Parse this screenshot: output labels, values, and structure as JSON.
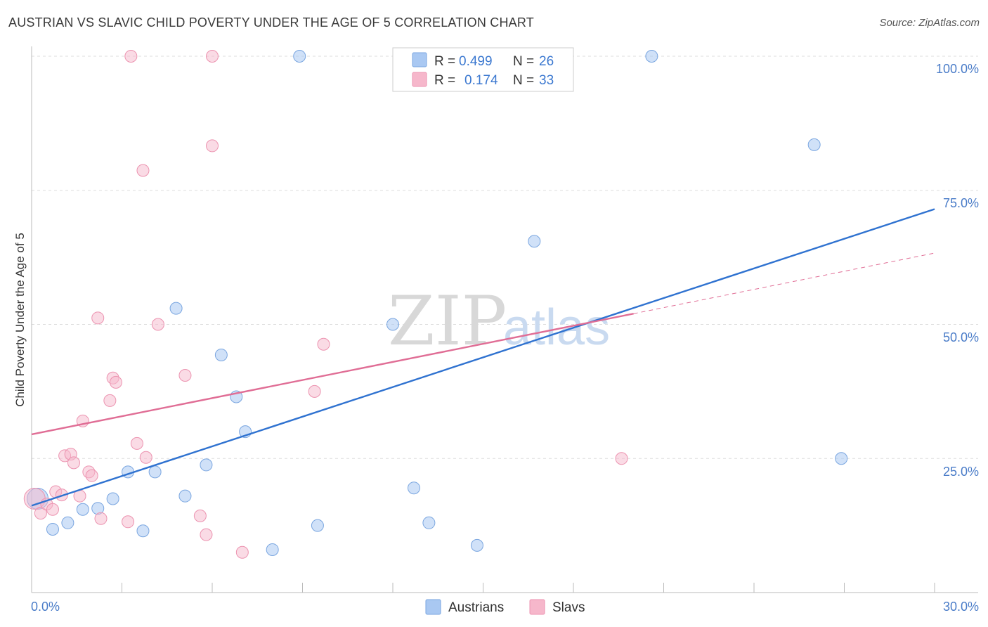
{
  "header": {
    "title": "AUSTRIAN VS SLAVIC CHILD POVERTY UNDER THE AGE OF 5 CORRELATION CHART",
    "source": "Source: ZipAtlas.com"
  },
  "watermark": {
    "zip": "ZIP",
    "atlas": "atlas"
  },
  "legend": {
    "rows": [
      {
        "r_label": "R =",
        "r_value": "0.499",
        "n_label": "N =",
        "n_value": "26",
        "color": "#a9c8f2"
      },
      {
        "r_label": "R =",
        "r_value": "0.174",
        "n_label": "N =",
        "n_value": "33",
        "color": "#f6b7cb"
      }
    ]
  },
  "chart_data": {
    "type": "scatter",
    "title": "AUSTRIAN VS SLAVIC CHILD POVERTY UNDER THE AGE OF 5 CORRELATION CHART",
    "xlabel": "",
    "ylabel": "Child Poverty Under the Age of 5",
    "xlim": [
      0,
      30
    ],
    "ylim": [
      0,
      100
    ],
    "x_tick_labels": [
      "0.0%",
      "30.0%"
    ],
    "y_tick_labels": [
      {
        "value": 100,
        "label": "100.0%"
      },
      {
        "value": 75,
        "label": "75.0%"
      },
      {
        "value": 50,
        "label": "50.0%"
      },
      {
        "value": 25,
        "label": "25.0%"
      }
    ],
    "series": [
      {
        "name": "Austrians",
        "color": "#a9c8f2",
        "stroke": "#7aa6e0",
        "line_color": "#2f72d0",
        "R": 0.499,
        "N": 26,
        "trend": {
          "x0": 0,
          "y0": 16.2,
          "x1": 30,
          "y1": 71.5
        },
        "points": [
          {
            "x": 0.2,
            "y": 17.5,
            "big": true
          },
          {
            "x": 0.7,
            "y": 11.8
          },
          {
            "x": 1.2,
            "y": 13.0
          },
          {
            "x": 1.7,
            "y": 15.5
          },
          {
            "x": 2.2,
            "y": 15.7
          },
          {
            "x": 2.7,
            "y": 17.5
          },
          {
            "x": 3.2,
            "y": 22.5
          },
          {
            "x": 3.7,
            "y": 11.5
          },
          {
            "x": 4.1,
            "y": 22.5
          },
          {
            "x": 4.8,
            "y": 53.0
          },
          {
            "x": 5.1,
            "y": 18.0
          },
          {
            "x": 5.8,
            "y": 23.8
          },
          {
            "x": 6.3,
            "y": 44.3
          },
          {
            "x": 6.8,
            "y": 36.5
          },
          {
            "x": 7.1,
            "y": 30.0
          },
          {
            "x": 8.0,
            "y": 8.0
          },
          {
            "x": 8.9,
            "y": 100.0
          },
          {
            "x": 9.5,
            "y": 12.5
          },
          {
            "x": 12.0,
            "y": 50.0
          },
          {
            "x": 12.7,
            "y": 19.5
          },
          {
            "x": 13.2,
            "y": 13.0
          },
          {
            "x": 14.8,
            "y": 8.8
          },
          {
            "x": 16.7,
            "y": 65.5
          },
          {
            "x": 20.6,
            "y": 100.0
          },
          {
            "x": 26.0,
            "y": 83.5
          },
          {
            "x": 26.9,
            "y": 25.0
          }
        ]
      },
      {
        "name": "Slavs",
        "color": "#f6b7cb",
        "stroke": "#ec93b0",
        "line_color": "#e06d95",
        "R": 0.174,
        "N": 33,
        "trend": {
          "x0": 0,
          "y0": 29.5,
          "x1": 20,
          "y1": 52.0
        },
        "trend_ext": {
          "x0": 20,
          "y0": 52.0,
          "x1": 30,
          "y1": 63.3
        },
        "points": [
          {
            "x": 0.1,
            "y": 17.5,
            "big": true
          },
          {
            "x": 0.3,
            "y": 14.8
          },
          {
            "x": 0.5,
            "y": 16.5
          },
          {
            "x": 0.7,
            "y": 15.5
          },
          {
            "x": 0.8,
            "y": 18.8
          },
          {
            "x": 1.0,
            "y": 18.2
          },
          {
            "x": 1.1,
            "y": 25.5
          },
          {
            "x": 1.3,
            "y": 25.8
          },
          {
            "x": 1.4,
            "y": 24.2
          },
          {
            "x": 1.6,
            "y": 18.0
          },
          {
            "x": 1.7,
            "y": 32.0
          },
          {
            "x": 1.9,
            "y": 22.5
          },
          {
            "x": 2.0,
            "y": 21.8
          },
          {
            "x": 2.2,
            "y": 51.2
          },
          {
            "x": 2.3,
            "y": 13.8
          },
          {
            "x": 2.6,
            "y": 35.8
          },
          {
            "x": 2.7,
            "y": 40.0
          },
          {
            "x": 2.8,
            "y": 39.2
          },
          {
            "x": 3.2,
            "y": 13.2
          },
          {
            "x": 3.3,
            "y": 100.0
          },
          {
            "x": 3.5,
            "y": 27.8
          },
          {
            "x": 3.7,
            "y": 78.7
          },
          {
            "x": 3.8,
            "y": 25.2
          },
          {
            "x": 4.2,
            "y": 50.0
          },
          {
            "x": 5.1,
            "y": 40.5
          },
          {
            "x": 5.6,
            "y": 14.3
          },
          {
            "x": 5.8,
            "y": 10.8
          },
          {
            "x": 6.0,
            "y": 83.3
          },
          {
            "x": 6.0,
            "y": 100.0
          },
          {
            "x": 7.0,
            "y": 7.5
          },
          {
            "x": 9.4,
            "y": 37.5
          },
          {
            "x": 9.7,
            "y": 46.3
          },
          {
            "x": 19.6,
            "y": 25.0
          }
        ]
      }
    ]
  }
}
